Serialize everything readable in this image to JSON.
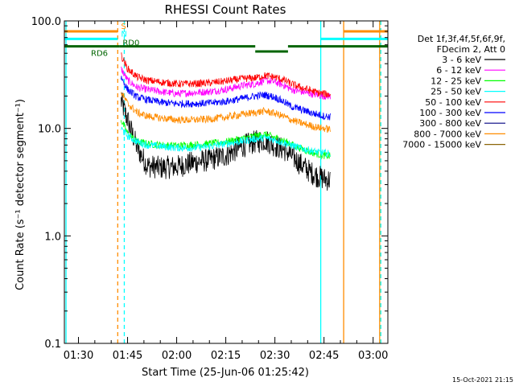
{
  "chart_data": {
    "type": "line",
    "title": "RHESSI Count Rates",
    "xlabel": "Start Time (25-Jun-06 01:25:42)",
    "ylabel": "Count Rate (s⁻¹ detector segment⁻¹)",
    "yscale": "log",
    "ylim": [
      0.1,
      100.0
    ],
    "xlim": [
      "01:25:42",
      "03:04:30"
    ],
    "x_ticks": [
      "01:30",
      "01:45",
      "02:00",
      "02:15",
      "02:30",
      "02:45",
      "03:00"
    ],
    "y_ticks": [
      "0.1",
      "1.0",
      "10.0",
      "100.0"
    ],
    "legend_header": [
      "Det 1f,3f,4f,5f,6f,9f,",
      "FDecim 2, Att 0"
    ],
    "legend_placement": "right",
    "timestamp": "15-Oct-2021 21:15",
    "series": [
      {
        "name": "3 - 6 keV",
        "color": "#000000",
        "x": [
          "01:43",
          "01:45",
          "01:48",
          "01:51",
          "01:55",
          "02:00",
          "02:05",
          "02:10",
          "02:15",
          "02:20",
          "02:24",
          "02:27",
          "02:30",
          "02:33",
          "02:35",
          "02:38",
          "02:41",
          "02:43",
          "02:45",
          "02:47"
        ],
        "values": [
          18,
          12,
          6.5,
          4.5,
          4.3,
          4.4,
          4.8,
          5.1,
          5.6,
          6.8,
          7.5,
          7.8,
          6.9,
          6.3,
          5.6,
          4.6,
          3.9,
          3.6,
          3.4,
          3.3
        ]
      },
      {
        "name": "6 - 12 keV",
        "color": "#ff00ff",
        "x": [
          "01:43",
          "01:45",
          "01:48",
          "01:51",
          "01:55",
          "02:00",
          "02:05",
          "02:10",
          "02:15",
          "02:20",
          "02:24",
          "02:27",
          "02:30",
          "02:33",
          "02:35",
          "02:38",
          "02:41",
          "02:43",
          "02:45",
          "02:47"
        ],
        "values": [
          36,
          28,
          24,
          23,
          22,
          21,
          21.5,
          22,
          23,
          25,
          26,
          28,
          27,
          25,
          23,
          22,
          21,
          20.5,
          20,
          20
        ]
      },
      {
        "name": "12 - 25 keV",
        "color": "#00ff00",
        "x": [
          "01:43",
          "01:45",
          "01:48",
          "01:51",
          "01:55",
          "02:00",
          "02:05",
          "02:10",
          "02:15",
          "02:20",
          "02:24",
          "02:27",
          "02:30",
          "02:33",
          "02:35",
          "02:38",
          "02:41",
          "02:43",
          "02:45",
          "02:47"
        ],
        "values": [
          12,
          9,
          7.5,
          7.2,
          7.0,
          6.9,
          7.0,
          7.2,
          7.5,
          8.0,
          8.5,
          8.8,
          8.2,
          7.6,
          7.1,
          6.5,
          6.0,
          5.8,
          5.6,
          5.5
        ]
      },
      {
        "name": "25 - 50 keV",
        "color": "#00ffff",
        "x": [
          "01:43",
          "01:45",
          "01:48",
          "01:51",
          "01:55",
          "02:00",
          "02:05",
          "02:10",
          "02:15",
          "02:20",
          "02:24",
          "02:27",
          "02:30",
          "02:33",
          "02:35",
          "02:38",
          "02:41",
          "02:43",
          "02:45",
          "02:47"
        ],
        "values": [
          10,
          8.5,
          7.5,
          7.0,
          6.8,
          6.6,
          6.6,
          6.8,
          7.2,
          7.6,
          8.0,
          8.2,
          7.8,
          7.3,
          7.0,
          6.5,
          6.2,
          6.0,
          5.9,
          5.8
        ]
      },
      {
        "name": "50 - 100 keV",
        "color": "#ff0000",
        "x": [
          "01:43",
          "01:45",
          "01:48",
          "01:51",
          "01:55",
          "02:00",
          "02:05",
          "02:10",
          "02:15",
          "02:20",
          "02:24",
          "02:27",
          "02:30",
          "02:33",
          "02:35",
          "02:38",
          "02:41",
          "02:43",
          "02:45",
          "02:47"
        ],
        "values": [
          48,
          36,
          30,
          28,
          27,
          26,
          26,
          26.5,
          27.5,
          29,
          29.5,
          31,
          30,
          28,
          26,
          24,
          22.5,
          21.5,
          21,
          20.5
        ]
      },
      {
        "name": "100 - 300 keV",
        "color": "#0000ff",
        "x": [
          "01:43",
          "01:45",
          "01:48",
          "01:51",
          "01:55",
          "02:00",
          "02:05",
          "02:10",
          "02:15",
          "02:20",
          "02:24",
          "02:27",
          "02:30",
          "02:33",
          "02:35",
          "02:38",
          "02:41",
          "02:43",
          "02:45",
          "02:47"
        ],
        "values": [
          30,
          23,
          19.5,
          18.5,
          17.5,
          17,
          17,
          17.2,
          17.8,
          19,
          20,
          20.5,
          19.5,
          17.5,
          16,
          15,
          14,
          13.5,
          13,
          12.8
        ]
      },
      {
        "name": "300 - 800 keV",
        "color": "#000080",
        "x": [],
        "values": []
      },
      {
        "name": "800 - 7000 keV",
        "color": "#ff8c00",
        "x": [
          "01:43",
          "01:45",
          "01:48",
          "01:51",
          "01:55",
          "02:00",
          "02:05",
          "02:10",
          "02:15",
          "02:20",
          "02:24",
          "02:27",
          "02:30",
          "02:33",
          "02:35",
          "02:38",
          "02:41",
          "02:43",
          "02:45",
          "02:47"
        ],
        "values": [
          22,
          17,
          14,
          13,
          12.5,
          12,
          12,
          12.2,
          12.7,
          13.5,
          14,
          14.5,
          13.8,
          12.8,
          12,
          11.2,
          10.6,
          10.2,
          10,
          9.8
        ]
      },
      {
        "name": "7000 - 15000 keV",
        "color": "#8b6508",
        "x": [],
        "values": []
      }
    ],
    "markers": [
      {
        "label": "S",
        "color": "#ff8c00",
        "x_start": "01:25:42",
        "x_end": "01:42:00",
        "y": 80
      },
      {
        "label": "N",
        "color": "#00ffff",
        "x_start": "01:25:42",
        "x_end": "01:42:00",
        "y": 68
      },
      {
        "label": "RD6",
        "color": "#006400",
        "x_start": "01:25:42",
        "x_end": "01:42:30",
        "y": 58
      },
      {
        "label": "RD0",
        "color": "#006400",
        "x_start": "01:42:30",
        "x_end": "02:24:00",
        "y": 58
      },
      {
        "label": "",
        "color": "#006400",
        "x_start": "02:24:00",
        "x_end": "02:34:00",
        "y": 52
      },
      {
        "label": "",
        "color": "#006400",
        "x_start": "02:34:00",
        "x_end": "03:04:30",
        "y": 58
      },
      {
        "label": "",
        "color": "#00ffff",
        "x_start": "02:44:00",
        "x_end": "03:04:30",
        "y": 68
      },
      {
        "label": "",
        "color": "#ff8c00",
        "x_start": "02:51:00",
        "x_end": "03:04:30",
        "y": 80
      }
    ],
    "vertical_lines": [
      {
        "x": "01:26:12",
        "color": "#00ffff",
        "style": "solid"
      },
      {
        "x": "01:42:00",
        "color": "#ff8c00",
        "style": "dashed"
      },
      {
        "x": "01:44:00",
        "color": "#00ffff",
        "style": "dashed"
      },
      {
        "x": "02:44:00",
        "color": "#00ffff",
        "style": "solid"
      },
      {
        "x": "02:51:00",
        "color": "#ff8c00",
        "style": "solid"
      },
      {
        "x": "03:02:00",
        "color": "#ff8c00",
        "style": "solid"
      },
      {
        "x": "03:02:20",
        "color": "#00ffff",
        "style": "dashed"
      }
    ]
  }
}
